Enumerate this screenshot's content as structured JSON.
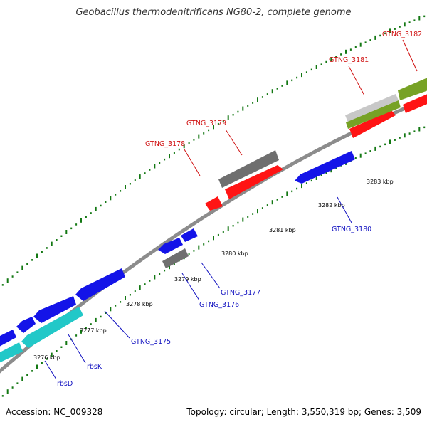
{
  "title": "Geobacillus thermodenitrificans NG80-2, complete genome",
  "footer": {
    "accession": "Accession: NC_009328",
    "stats": "Topology: circular; Length: 3,550,319 bp; Genes: 3,509"
  },
  "colors": {
    "backbone": "#8c8c8c",
    "tick": "#137813",
    "forward_label": "#d01010",
    "reverse_label": "#1010c0",
    "red": "#ff1414",
    "blue": "#1414e8",
    "dark_gray": "#6f6f6f",
    "light_gray": "#c8c8c8",
    "olive": "#77a225",
    "cyan": "#22c8c8"
  },
  "ticks": {
    "labels": [
      "3276 kbp",
      "3277 kbp",
      "3278 kbp",
      "3279 kbp",
      "3280 kbp",
      "3281 kbp",
      "3282 kbp",
      "3283 kbp"
    ]
  },
  "gene_labels": {
    "forward": [
      "GTNG_3178",
      "GTNG_3179",
      "GTNG_3181",
      "GTNG_3182"
    ],
    "reverse": [
      "GTNG_3175",
      "GTNG_3176",
      "GTNG_3177",
      "GTNG_3180",
      "rbsK",
      "rbsD"
    ]
  }
}
